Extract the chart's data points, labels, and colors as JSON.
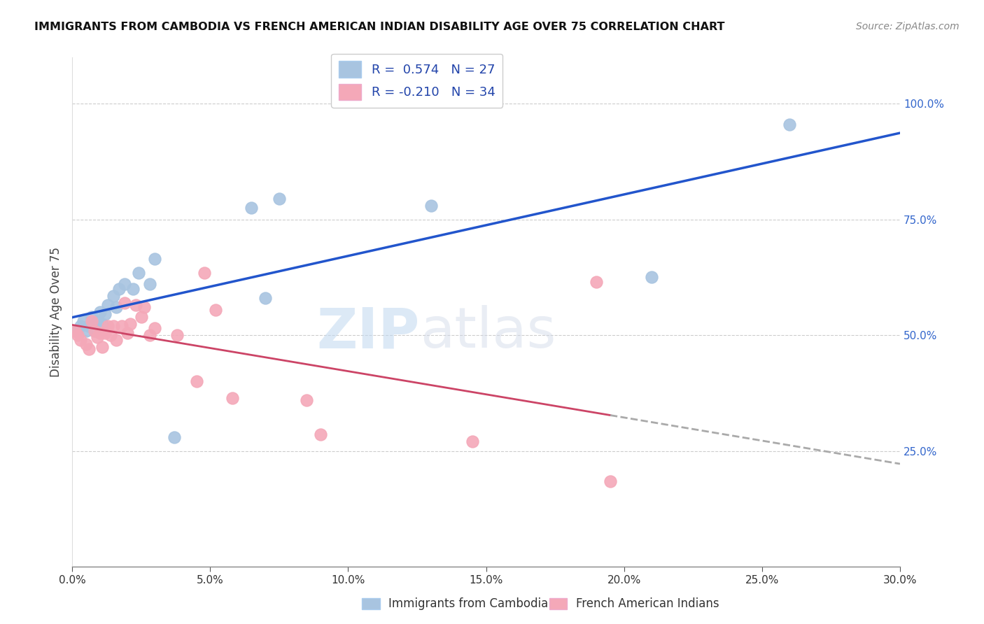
{
  "title": "IMMIGRANTS FROM CAMBODIA VS FRENCH AMERICAN INDIAN DISABILITY AGE OVER 75 CORRELATION CHART",
  "source": "Source: ZipAtlas.com",
  "ylabel": "Disability Age Over 75",
  "x_ticks": [
    "0.0%",
    "5.0%",
    "10.0%",
    "15.0%",
    "20.0%",
    "25.0%",
    "30.0%"
  ],
  "x_tick_vals": [
    0.0,
    0.05,
    0.1,
    0.15,
    0.2,
    0.25,
    0.3
  ],
  "y_ticks_right": [
    "25.0%",
    "50.0%",
    "75.0%",
    "100.0%"
  ],
  "y_tick_vals": [
    0.25,
    0.5,
    0.75,
    1.0
  ],
  "xlim": [
    0.0,
    0.3
  ],
  "ylim": [
    0.0,
    1.1
  ],
  "legend1_r": "0.574",
  "legend1_n": "27",
  "legend2_r": "-0.210",
  "legend2_n": "34",
  "series1_color": "#a8c4e0",
  "series2_color": "#f4a8b8",
  "line1_color": "#2255cc",
  "line2_color": "#cc4466",
  "watermark_zip": "ZIP",
  "watermark_atlas": "atlas",
  "blue_points_x": [
    0.001,
    0.003,
    0.004,
    0.005,
    0.006,
    0.007,
    0.008,
    0.009,
    0.01,
    0.011,
    0.012,
    0.013,
    0.015,
    0.016,
    0.017,
    0.019,
    0.022,
    0.024,
    0.028,
    0.03,
    0.037,
    0.065,
    0.07,
    0.075,
    0.13,
    0.21,
    0.26
  ],
  "blue_points_y": [
    0.51,
    0.52,
    0.53,
    0.51,
    0.52,
    0.54,
    0.51,
    0.53,
    0.55,
    0.525,
    0.545,
    0.565,
    0.585,
    0.56,
    0.6,
    0.61,
    0.6,
    0.635,
    0.61,
    0.665,
    0.28,
    0.775,
    0.58,
    0.795,
    0.78,
    0.625,
    0.955
  ],
  "pink_points_x": [
    0.001,
    0.002,
    0.003,
    0.005,
    0.006,
    0.007,
    0.008,
    0.009,
    0.01,
    0.011,
    0.012,
    0.013,
    0.014,
    0.015,
    0.016,
    0.018,
    0.019,
    0.02,
    0.021,
    0.023,
    0.025,
    0.026,
    0.028,
    0.03,
    0.038,
    0.045,
    0.048,
    0.052,
    0.058,
    0.085,
    0.09,
    0.145,
    0.19,
    0.195
  ],
  "pink_points_y": [
    0.51,
    0.5,
    0.49,
    0.48,
    0.47,
    0.53,
    0.51,
    0.495,
    0.505,
    0.475,
    0.505,
    0.52,
    0.5,
    0.52,
    0.49,
    0.52,
    0.57,
    0.505,
    0.525,
    0.565,
    0.54,
    0.56,
    0.5,
    0.515,
    0.5,
    0.4,
    0.635,
    0.555,
    0.365,
    0.36,
    0.285,
    0.27,
    0.615,
    0.185
  ]
}
